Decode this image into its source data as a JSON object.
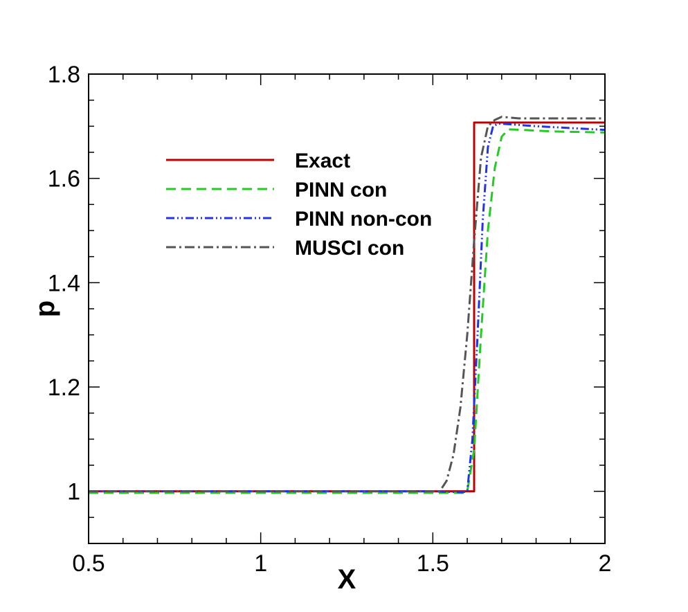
{
  "chart_data": {
    "type": "line",
    "xlabel": "X",
    "ylabel": "p",
    "xlim": [
      0.5,
      2.0
    ],
    "ylim": [
      0.9,
      1.8
    ],
    "grid": false,
    "legend_position": "upper-left inside plot",
    "x_major_ticks": [
      0.5,
      1.0,
      1.5,
      2.0
    ],
    "x_tick_labels": [
      "0.5",
      "1",
      "1.5",
      "2"
    ],
    "y_major_ticks": [
      1.0,
      1.2,
      1.4,
      1.6,
      1.8
    ],
    "y_tick_labels": [
      "1",
      "1.2",
      "1.4",
      "1.6",
      "1.8"
    ],
    "series": [
      {
        "name": "Exact",
        "color": "#c00000",
        "dash": "solid",
        "x": [
          0.5,
          1.595,
          1.595,
          1.62,
          1.62,
          2.0
        ],
        "y": [
          1.0,
          1.0,
          1.0,
          1.0,
          1.707,
          1.707
        ]
      },
      {
        "name": "PINN con",
        "color": "#22cc22",
        "dash": "dashed",
        "x": [
          0.5,
          1.59,
          1.6,
          1.62,
          1.64,
          1.66,
          1.68,
          1.7,
          1.72,
          1.76,
          1.85,
          2.0
        ],
        "y": [
          0.997,
          0.997,
          1.0,
          1.08,
          1.3,
          1.5,
          1.62,
          1.68,
          1.694,
          1.693,
          1.69,
          1.688
        ]
      },
      {
        "name": "PINN non-con",
        "color": "#2233ee",
        "dash": "dashdotdot",
        "x": [
          0.5,
          1.5,
          1.585,
          1.6,
          1.615,
          1.63,
          1.645,
          1.66,
          1.675,
          1.69,
          1.72,
          1.8,
          2.0
        ],
        "y": [
          1.0,
          1.0,
          0.998,
          1.0,
          1.1,
          1.3,
          1.52,
          1.66,
          1.7,
          1.705,
          1.704,
          1.7,
          1.693
        ]
      },
      {
        "name": "MUSCI con",
        "color": "#555555",
        "dash": "dashdot",
        "x": [
          0.5,
          1.52,
          1.54,
          1.56,
          1.58,
          1.6,
          1.62,
          1.64,
          1.66,
          1.68,
          1.7,
          1.75,
          2.0
        ],
        "y": [
          1.0,
          1.0,
          1.02,
          1.07,
          1.16,
          1.3,
          1.48,
          1.64,
          1.7,
          1.712,
          1.718,
          1.715,
          1.715
        ]
      }
    ]
  }
}
